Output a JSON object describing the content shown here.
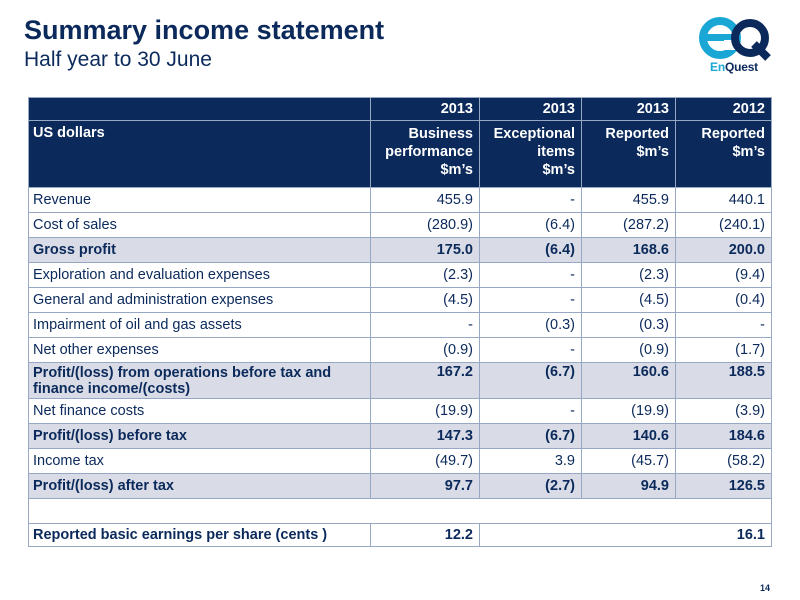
{
  "header": {
    "title": "Summary income statement",
    "subtitle": "Half year to 30 June"
  },
  "logo": {
    "monogram": "eQ",
    "word_en": "En",
    "word_quest": "Quest",
    "colors": {
      "e": "#1aa7d6",
      "q": "#0b2a5b"
    }
  },
  "table": {
    "years": [
      "2013",
      "2013",
      "2013",
      "2012"
    ],
    "label_header": "US dollars",
    "column_headers": [
      [
        "Business",
        "performance",
        "$m’s"
      ],
      [
        "Exceptional",
        "items",
        "$m’s"
      ],
      [
        "Reported",
        "$m’s"
      ],
      [
        "Reported",
        "$m’s"
      ]
    ],
    "rows": [
      {
        "label": "Revenue",
        "values": [
          "455.9",
          "-",
          "455.9",
          "440.1"
        ]
      },
      {
        "label": "Cost of sales",
        "values": [
          "(280.9)",
          "(6.4)",
          "(287.2)",
          "(240.1)"
        ]
      },
      {
        "label": "Gross profit",
        "values": [
          "175.0",
          "(6.4)",
          "168.6",
          "200.0"
        ]
      },
      {
        "label": "Exploration and evaluation expenses",
        "values": [
          "(2.3)",
          "-",
          "(2.3)",
          "(9.4)"
        ]
      },
      {
        "label": "General and administration expenses",
        "values": [
          "(4.5)",
          "-",
          "(4.5)",
          "(0.4)"
        ]
      },
      {
        "label": "Impairment of oil and gas assets",
        "values": [
          "-",
          "(0.3)",
          "(0.3)",
          "-"
        ]
      },
      {
        "label": "Net other expenses",
        "values": [
          "(0.9)",
          "-",
          "(0.9)",
          "(1.7)"
        ]
      },
      {
        "label": "Profit/(loss) from operations before tax and finance income/(costs)",
        "values": [
          "167.2",
          "(6.7)",
          "160.6",
          "188.5"
        ]
      },
      {
        "label": "Net finance costs",
        "values": [
          "(19.9)",
          "-",
          "(19.9)",
          "(3.9)"
        ]
      },
      {
        "label": "Profit/(loss) before tax",
        "values": [
          "147.3",
          "(6.7)",
          "140.6",
          "184.6"
        ]
      },
      {
        "label": "Income tax",
        "values": [
          "(49.7)",
          "3.9",
          "(45.7)",
          "(58.2)"
        ]
      },
      {
        "label": "Profit/(loss) after tax",
        "values": [
          "97.7",
          "(2.7)",
          "94.9",
          "126.5"
        ]
      },
      {
        "label": "",
        "values": [
          "",
          "",
          "",
          ""
        ]
      },
      {
        "label": "Reported basic earnings per share (cents )",
        "values": [
          "12.2",
          "",
          "",
          "16.1"
        ]
      }
    ]
  },
  "page_number": "14",
  "colors": {
    "navy": "#0b2a5b",
    "highlight_row": "#d9dce6",
    "border": "#97a8c4"
  }
}
